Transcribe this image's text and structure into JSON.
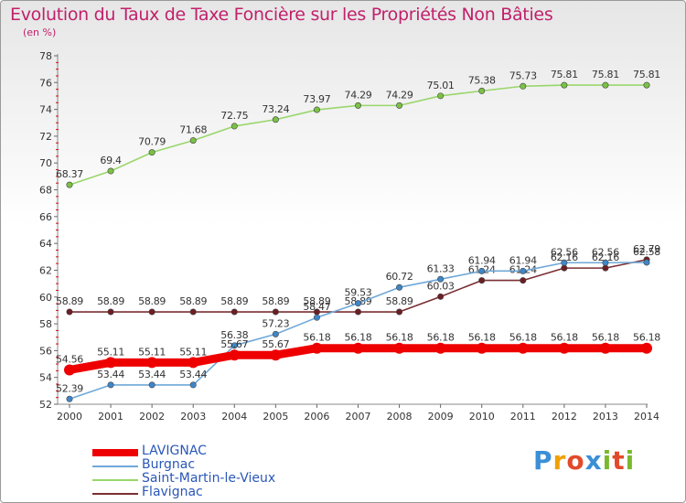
{
  "header": {
    "title": "Evolution du Taux de Taxe Foncière sur les Propriétés Non Bâties",
    "unit": "(en %)"
  },
  "logo": {
    "letters": [
      "P",
      "r",
      "o",
      "x",
      "i",
      "t",
      "i"
    ],
    "colors": [
      "#3a8fd6",
      "#f0a000",
      "#e24a2a",
      "#3a8fd6",
      "#7ab82f",
      "#e24a2a",
      "#7ab82f"
    ]
  },
  "chart_data": {
    "type": "line",
    "x": [
      "2000",
      "2001",
      "2002",
      "2003",
      "2004",
      "2005",
      "2006",
      "2007",
      "2008",
      "2009",
      "2010",
      "2011",
      "2012",
      "2013",
      "2014"
    ],
    "ylim": [
      52,
      78
    ],
    "yticks": [
      52,
      54,
      56,
      58,
      60,
      62,
      64,
      66,
      68,
      70,
      72,
      74,
      76,
      78
    ],
    "grid": false,
    "legend_position": "bottom-left",
    "series": [
      {
        "name": "Saint-Martin-le-Vieux",
        "color": "#99d66b",
        "marker_color": "#7bc144",
        "values": [
          68.37,
          69.4,
          70.79,
          71.68,
          72.75,
          73.24,
          73.97,
          74.29,
          74.29,
          75.01,
          75.38,
          75.73,
          75.81,
          75.81,
          75.81
        ],
        "labels": [
          "68.37",
          "69.4",
          "70.79",
          "71.68",
          "72.75",
          "73.24",
          "73.97",
          "74.29",
          "74.29",
          "75.01",
          "75.38",
          "75.73",
          "75.81",
          "75.81",
          "75.81"
        ]
      },
      {
        "name": "Flavignac",
        "color": "#7a2e32",
        "marker_color": "#6b1e24",
        "values": [
          58.89,
          58.89,
          58.89,
          58.89,
          58.89,
          58.89,
          58.89,
          58.89,
          58.89,
          60.03,
          61.24,
          61.24,
          62.16,
          62.16,
          62.79
        ],
        "labels": [
          "58.89",
          "58.89",
          "58.89",
          "58.89",
          "58.89",
          "58.89",
          "58.89",
          "58.89",
          "58.89",
          "60.03",
          "61.24",
          "61.24",
          "62.16",
          "62.16",
          "62.79"
        ]
      },
      {
        "name": "Burgnac",
        "color": "#6fa8d8",
        "marker_color": "#3f86c8",
        "values": [
          52.39,
          53.44,
          53.44,
          53.44,
          56.38,
          57.23,
          58.47,
          59.53,
          60.72,
          61.33,
          61.94,
          61.94,
          62.56,
          62.56,
          62.58
        ],
        "labels": [
          "52.39",
          "53.44",
          "53.44",
          "53.44",
          "56.38",
          "57.23",
          "58.47",
          "59.53",
          "60.72",
          "61.33",
          "61.94",
          "61.94",
          "62.56",
          "62.56",
          "62.58"
        ]
      },
      {
        "name": "LAVIGNAC",
        "color": "#ee0000",
        "marker_color": "#ee0000",
        "values": [
          54.56,
          55.11,
          55.11,
          55.11,
          55.67,
          55.67,
          56.18,
          56.18,
          56.18,
          56.18,
          56.18,
          56.18,
          56.18,
          56.18,
          56.18
        ],
        "labels": [
          "54.56",
          "55.11",
          "55.11",
          "55.11",
          "55.67",
          "55.67",
          "56.18",
          "56.18",
          "56.18",
          "56.18",
          "56.18",
          "56.18",
          "56.18",
          "56.18",
          "56.18"
        ]
      }
    ]
  },
  "legend": {
    "items": [
      {
        "label": "LAVIGNAC",
        "color": "#ee0000",
        "text_color": "#2a57b8"
      },
      {
        "label": "Burgnac",
        "color": "#6fa8d8",
        "text_color": "#2a57b8"
      },
      {
        "label": "Saint-Martin-le-Vieux",
        "color": "#99d66b",
        "text_color": "#2a57b8"
      },
      {
        "label": "Flavignac",
        "color": "#7a2e32",
        "text_color": "#2a57b8"
      }
    ]
  }
}
